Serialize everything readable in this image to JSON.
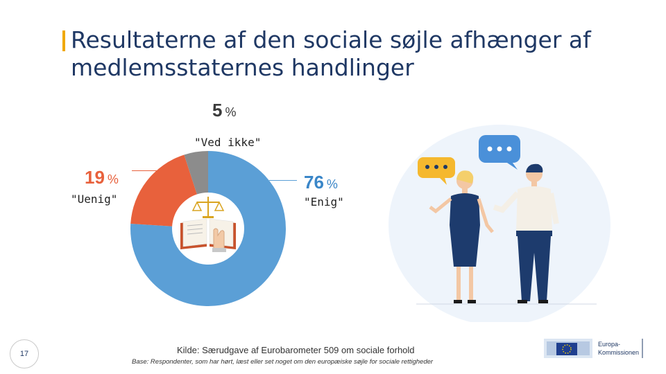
{
  "slide": {
    "title": "Resultaterne af den sociale søjle afhænger af medlemsstaternes handlinger",
    "page_number": "17",
    "source": "Kilde: Særudgave af Eurobarometer 509 om sociale forhold",
    "base": "Base: Respondenter, som har hørt, læst eller set noget om den europæiske søjle for sociale rettigheder",
    "logo_text_line1": "Europa-",
    "logo_text_line2": "Kommissionen",
    "accent_color": "#f0a800"
  },
  "chart_data": {
    "type": "pie",
    "title": "",
    "slices": [
      {
        "label": "\"Enig\"",
        "value": 76,
        "value_text": "76",
        "unit": "%",
        "color": "#5b9fd6"
      },
      {
        "label": "\"Uenig\"",
        "value": 19,
        "value_text": "19",
        "unit": "%",
        "color": "#e8613c"
      },
      {
        "label": "\"Ved ikke\"",
        "value": 5,
        "value_text": "5",
        "unit": "%",
        "color": "#8c8c8c"
      }
    ],
    "donut": true,
    "center_icon": "justice-book-icon"
  }
}
